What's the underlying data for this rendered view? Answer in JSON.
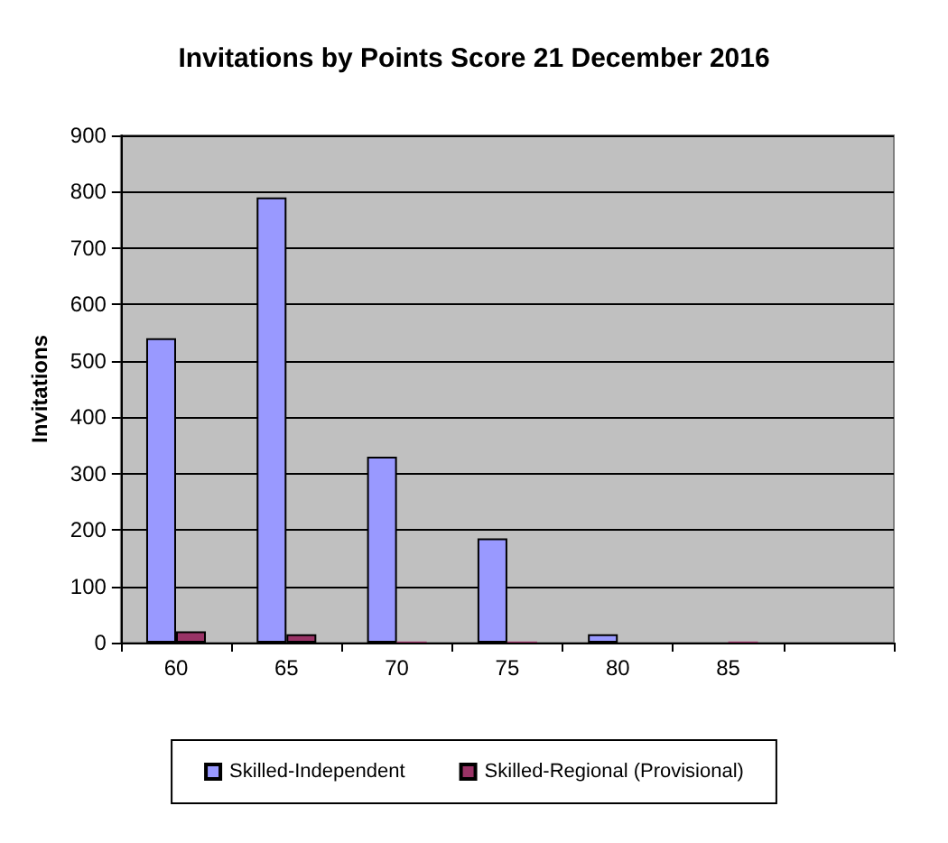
{
  "chart_data": {
    "type": "bar",
    "title": "Invitations by Points Score 21 December 2016",
    "ylabel": "Invitations",
    "categories": [
      "60",
      "65",
      "70",
      "75",
      "80",
      "85",
      null
    ],
    "series": [
      {
        "name": "Skilled-Independent",
        "color": "#9999ff",
        "values": [
          540,
          790,
          330,
          185,
          15,
          null,
          null
        ]
      },
      {
        "name": "Skilled-Regional (Provisional)",
        "color": "#993366",
        "values": [
          20,
          15,
          2,
          2,
          null,
          2,
          null
        ]
      }
    ],
    "ylim": [
      0,
      900
    ],
    "yticks": [
      0,
      100,
      200,
      300,
      400,
      500,
      600,
      700,
      800,
      900
    ],
    "grid": "y",
    "legend": "bottom"
  }
}
